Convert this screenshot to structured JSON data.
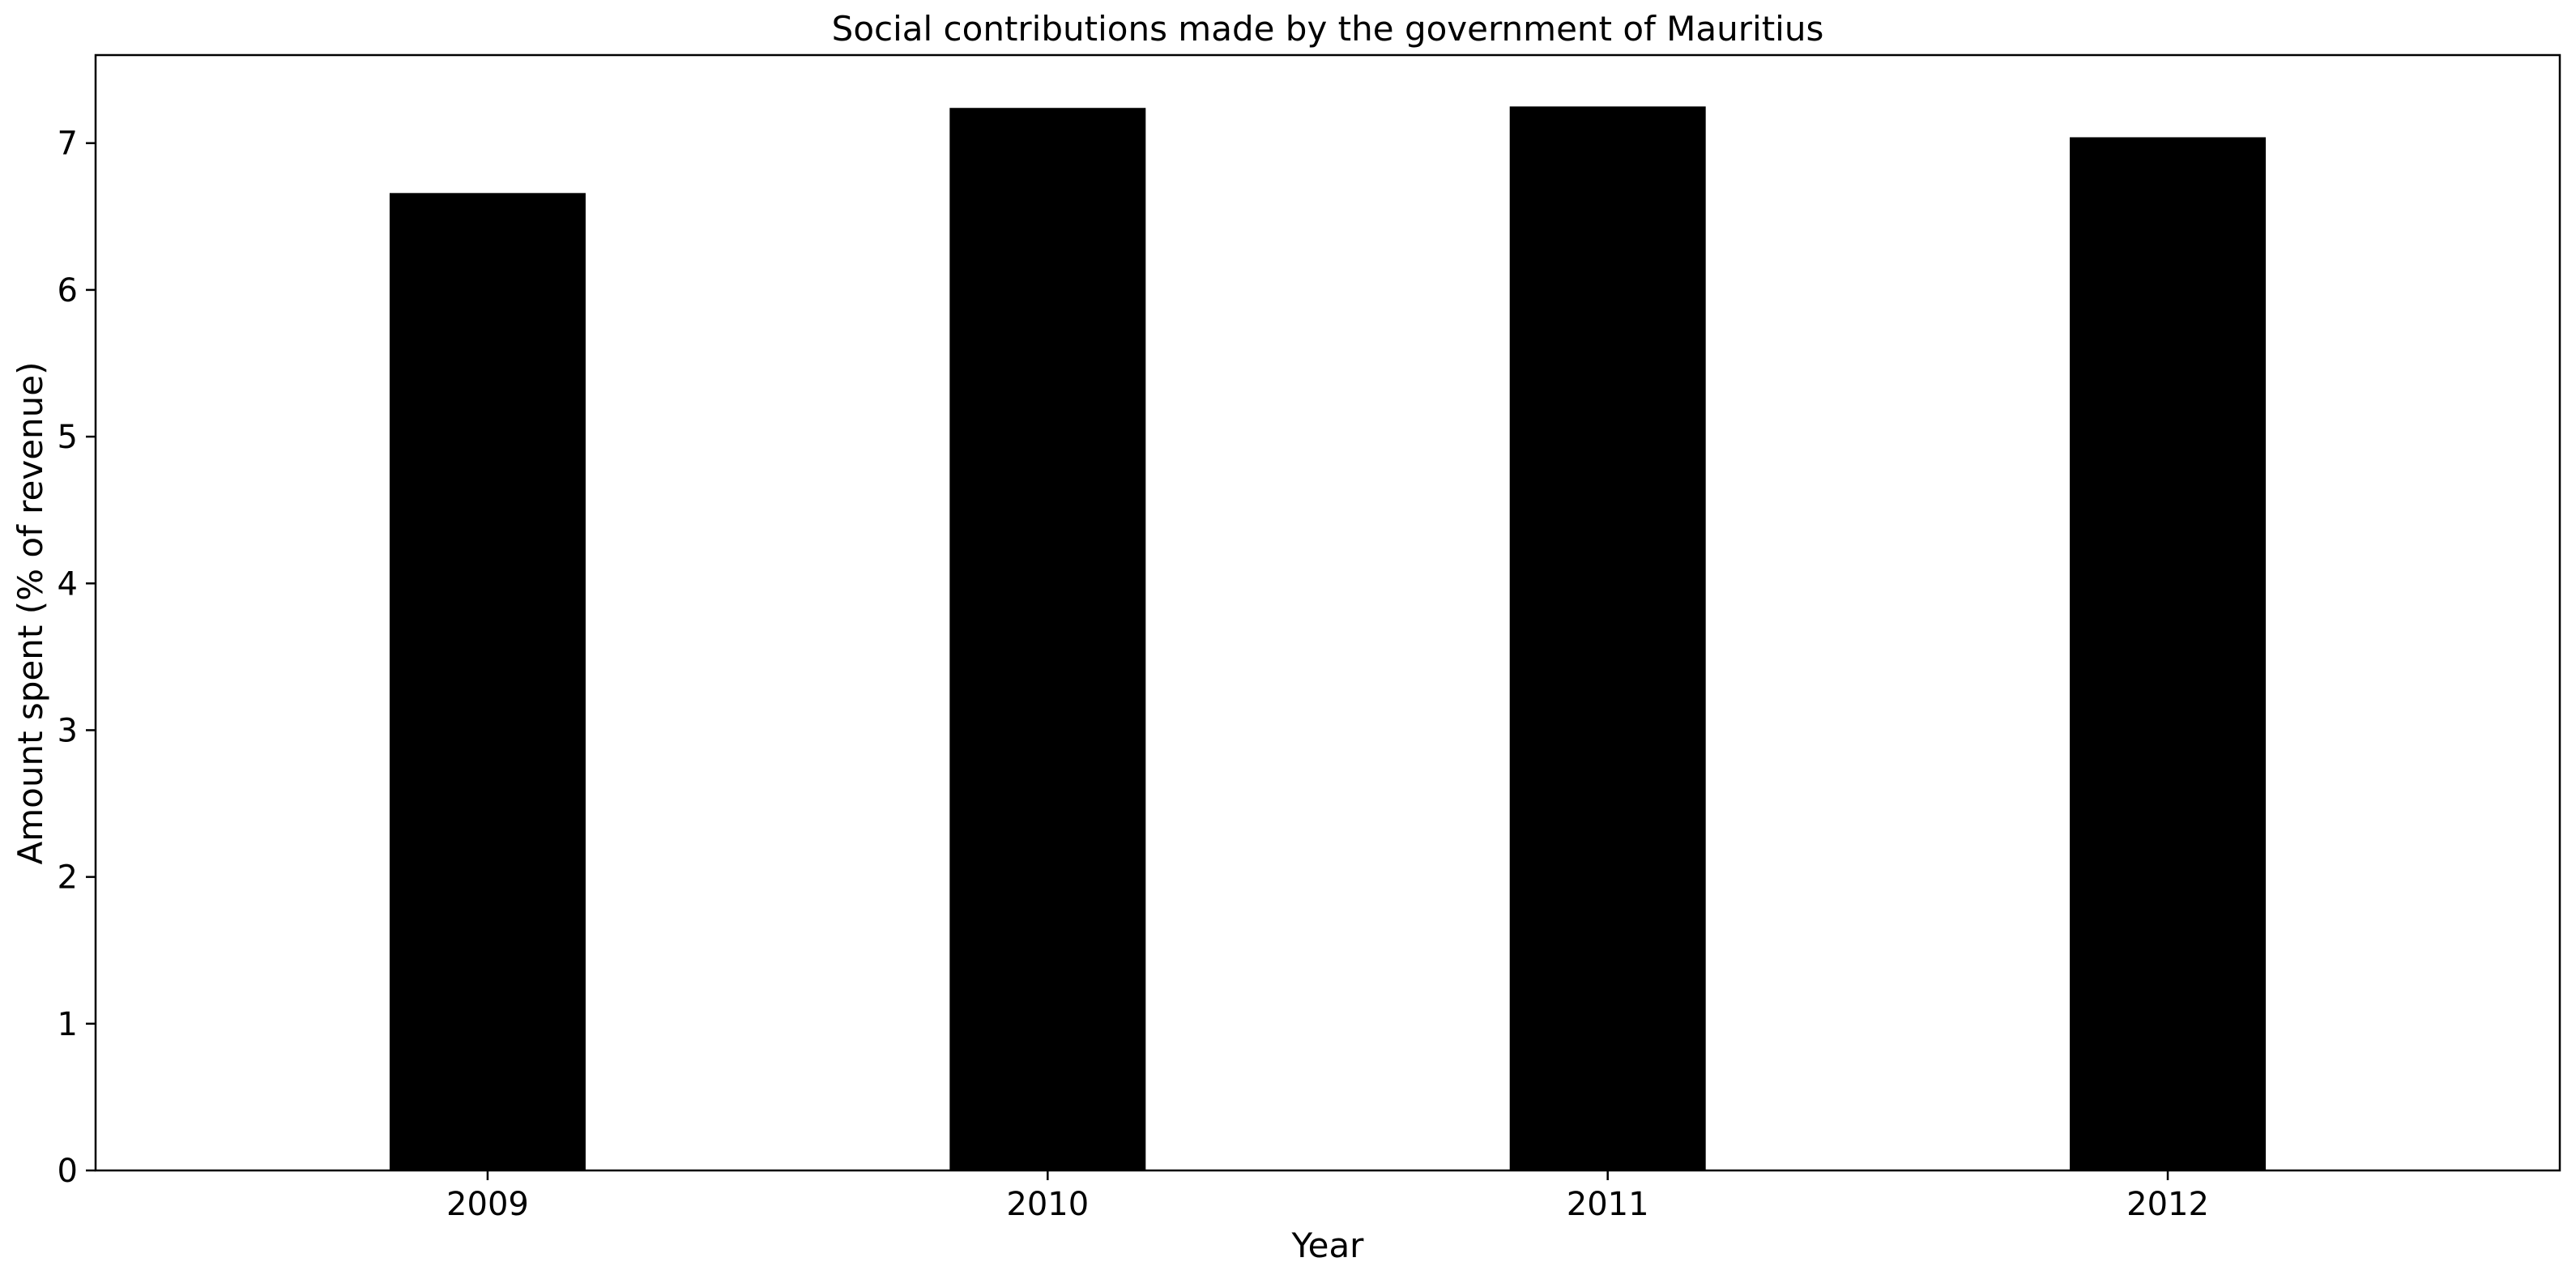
{
  "chart_data": {
    "type": "bar",
    "title": "Social contributions made by the government of Mauritius",
    "xlabel": "Year",
    "ylabel": "Amount spent (% of revenue)",
    "categories": [
      "2009",
      "2010",
      "2011",
      "2012"
    ],
    "values": [
      6.66,
      7.24,
      7.25,
      7.04
    ],
    "ylim": [
      0,
      7.6
    ],
    "yticks": [
      0,
      1,
      2,
      3,
      4,
      5,
      6,
      7
    ],
    "grid": false,
    "legend": "none",
    "bar_color": "#000000"
  }
}
